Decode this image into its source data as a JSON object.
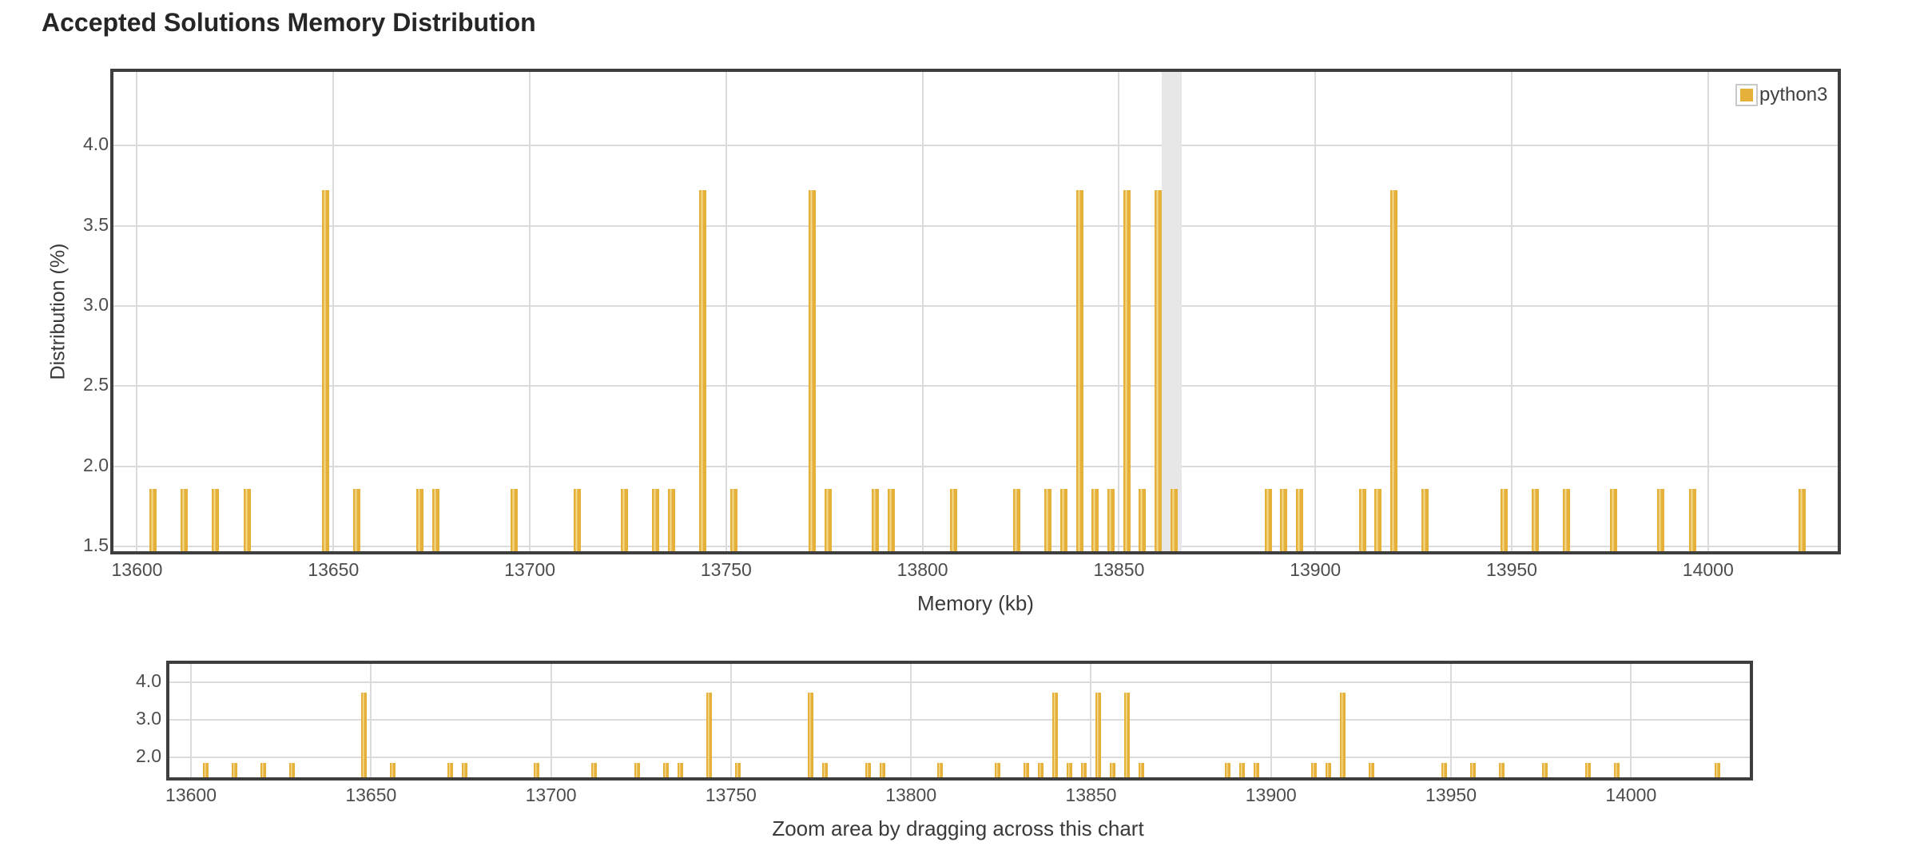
{
  "title": "Accepted Solutions Memory Distribution",
  "legend": {
    "label": "python3",
    "color": "#e5b13a",
    "swatch_border": "#c9c9c9"
  },
  "main_chart": {
    "y_axis_title": "Distribution (%)",
    "x_axis_title": "Memory (kb)"
  },
  "mini_chart": {
    "caption": "Zoom area by dragging across this chart"
  },
  "colors": {
    "bar": "#e5b13a",
    "bar_stripe": "#f4da8e",
    "gridline": "#dbdbdb",
    "plot_border": "#3e3e3e",
    "plot_band": "#e7e7e7",
    "tick_text": "#4d4d4d",
    "title_text": "#262626"
  },
  "chart_data": [
    {
      "id": "main-distribution",
      "type": "bar",
      "title": "Accepted Solutions Memory Distribution",
      "xlabel": "Memory (kb)",
      "ylabel": "Distribution (%)",
      "x_ticks": [
        13600,
        13650,
        13700,
        13750,
        13800,
        13850,
        13900,
        13950,
        14000
      ],
      "y_ticks": [
        1.5,
        2.0,
        2.5,
        3.0,
        3.5,
        4.0
      ],
      "xlim": [
        13594,
        14033
      ],
      "ylim": [
        1.47,
        4.46
      ],
      "grid": true,
      "legend_position": "top-right",
      "plot_band": {
        "from": 13861,
        "to": 13866,
        "color": "#e7e7e7"
      },
      "series": [
        {
          "name": "python3",
          "color": "#e5b13a",
          "points": [
            [
              13604,
              1.86
            ],
            [
              13612,
              1.86
            ],
            [
              13620,
              1.86
            ],
            [
              13628,
              1.86
            ],
            [
              13648,
              3.72
            ],
            [
              13656,
              1.86
            ],
            [
              13672,
              1.86
            ],
            [
              13676,
              1.86
            ],
            [
              13696,
              1.86
            ],
            [
              13712,
              1.86
            ],
            [
              13724,
              1.86
            ],
            [
              13732,
              1.86
            ],
            [
              13736,
              1.86
            ],
            [
              13744,
              3.72
            ],
            [
              13752,
              1.86
            ],
            [
              13772,
              3.72
            ],
            [
              13776,
              1.86
            ],
            [
              13788,
              1.86
            ],
            [
              13792,
              1.86
            ],
            [
              13808,
              1.86
            ],
            [
              13824,
              1.86
            ],
            [
              13832,
              1.86
            ],
            [
              13836,
              1.86
            ],
            [
              13840,
              3.72
            ],
            [
              13844,
              1.86
            ],
            [
              13848,
              1.86
            ],
            [
              13852,
              3.72
            ],
            [
              13856,
              1.86
            ],
            [
              13860,
              3.72
            ],
            [
              13864,
              1.86
            ],
            [
              13888,
              1.86
            ],
            [
              13892,
              1.86
            ],
            [
              13896,
              1.86
            ],
            [
              13912,
              1.86
            ],
            [
              13916,
              1.86
            ],
            [
              13920,
              3.72
            ],
            [
              13928,
              1.86
            ],
            [
              13948,
              1.86
            ],
            [
              13956,
              1.86
            ],
            [
              13964,
              1.86
            ],
            [
              13976,
              1.86
            ],
            [
              13988,
              1.86
            ],
            [
              13996,
              1.86
            ],
            [
              14024,
              1.86
            ]
          ]
        }
      ]
    },
    {
      "id": "zoom-navigator",
      "type": "bar",
      "xlabel": "Zoom area by dragging across this chart",
      "ylabel": "",
      "x_ticks": [
        13600,
        13650,
        13700,
        13750,
        13800,
        13850,
        13900,
        13950,
        14000
      ],
      "y_ticks": [
        2.0,
        3.0,
        4.0
      ],
      "xlim": [
        13594,
        14033
      ],
      "ylim": [
        1.47,
        4.49
      ],
      "grid": true,
      "series_from": "main-distribution"
    }
  ]
}
